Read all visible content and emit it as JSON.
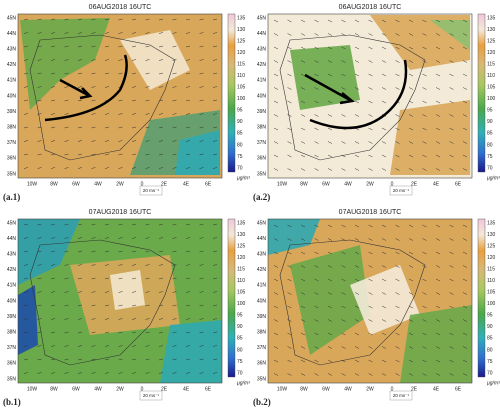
{
  "panels": [
    {
      "title": "06AUG2018  16UTC",
      "label": "(a.1)",
      "lat_ticks": [
        "45N",
        "44N",
        "43N",
        "42N",
        "41N",
        "40N",
        "39N",
        "38N",
        "37N",
        "36N",
        "35N"
      ],
      "lon_ticks": [
        "10W",
        "8W",
        "6W",
        "4W",
        "2W",
        "0",
        "2E",
        "4E",
        "6E"
      ],
      "colorbar_ticks": [
        135,
        130,
        125,
        120,
        115,
        110,
        105,
        100,
        95,
        90,
        85,
        80,
        75,
        70
      ],
      "unit": "μg/m³",
      "vector_scale": "20 ms⁻¹"
    },
    {
      "title": "06AUG2018  16UTC",
      "label": "(a.2)",
      "lat_ticks": [
        "45N",
        "44N",
        "43N",
        "42N",
        "41N",
        "40N",
        "39N",
        "38N",
        "37N",
        "36N",
        "35N"
      ],
      "lon_ticks": [
        "10W",
        "8W",
        "6W",
        "4W",
        "2W",
        "0",
        "2E",
        "4E",
        "6E"
      ],
      "colorbar_ticks": [
        135,
        130,
        125,
        120,
        115,
        110,
        105,
        100,
        95,
        90,
        85,
        80,
        75,
        70
      ],
      "unit": "μg/m³",
      "vector_scale": "20 ms⁻¹"
    },
    {
      "title": "07AUG2018  16UTC",
      "label": "(b.1)",
      "lat_ticks": [
        "45N",
        "44N",
        "43N",
        "42N",
        "41N",
        "40N",
        "39N",
        "38N",
        "37N",
        "36N",
        "35N"
      ],
      "lon_ticks": [
        "10W",
        "8W",
        "6W",
        "4W",
        "2W",
        "0",
        "2E",
        "4E",
        "6E"
      ],
      "colorbar_ticks": [
        135,
        130,
        125,
        120,
        115,
        110,
        105,
        100,
        95,
        90,
        85,
        80,
        75,
        70
      ],
      "unit": "μg/m³",
      "vector_scale": "20 ms⁻¹"
    },
    {
      "title": "07AUG2018  16UTC",
      "label": "(b.2)",
      "lat_ticks": [
        "45N",
        "44N",
        "43N",
        "42N",
        "41N",
        "40N",
        "39N",
        "38N",
        "37N",
        "36N",
        "35N"
      ],
      "lon_ticks": [
        "10W",
        "8W",
        "6W",
        "4W",
        "2W",
        "0",
        "2E",
        "4E",
        "6E"
      ],
      "colorbar_ticks": [
        135,
        130,
        125,
        120,
        115,
        110,
        105,
        100,
        95,
        90,
        85,
        80,
        75,
        70
      ],
      "unit": "μg/m³",
      "vector_scale": "20 ms⁻¹"
    }
  ]
}
